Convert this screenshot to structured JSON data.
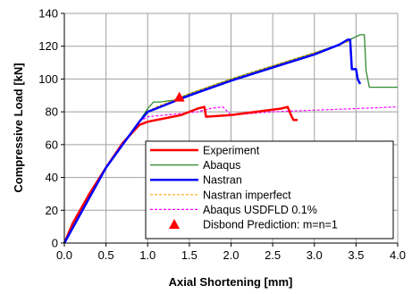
{
  "chart_data": {
    "type": "line",
    "xlabel": "Axial Shortening [mm]",
    "ylabel": "Compressive Load [kN]",
    "xlim": [
      0,
      4
    ],
    "ylim": [
      0,
      140
    ],
    "xticks": [
      "0.0",
      "0.5",
      "1.0",
      "1.5",
      "2.0",
      "2.5",
      "3.0",
      "3.5",
      "4.0"
    ],
    "yticks": [
      "0",
      "20",
      "40",
      "60",
      "80",
      "100",
      "120",
      "140"
    ],
    "grid": true,
    "legend_position": "bottom-right",
    "series": [
      {
        "name": "Experiment",
        "color": "#ff0000",
        "style": "solid",
        "x": [
          0.0,
          0.1,
          0.3,
          0.5,
          0.7,
          0.9,
          1.0,
          1.2,
          1.4,
          1.6,
          1.68,
          1.7,
          2.0,
          2.3,
          2.6,
          2.68,
          2.72,
          2.75,
          2.8
        ],
        "y": [
          0,
          12,
          30,
          46,
          61,
          72,
          74,
          76,
          78,
          82,
          83,
          77,
          78,
          80,
          82,
          83,
          78,
          75,
          75
        ]
      },
      {
        "name": "Abaqus",
        "color": "#2e8b2e",
        "style": "solid",
        "x": [
          0.0,
          0.5,
          0.9,
          1.0,
          1.07,
          1.15,
          1.3,
          1.5,
          2.0,
          2.5,
          3.0,
          3.3,
          3.55,
          3.6,
          3.62,
          3.66,
          4.0
        ],
        "y": [
          0,
          46,
          74,
          82,
          86,
          86,
          87,
          91,
          100,
          108,
          116,
          121,
          127,
          127,
          105,
          95,
          95
        ]
      },
      {
        "name": "Nastran",
        "color": "#0000ff",
        "style": "solid",
        "x": [
          0.0,
          0.5,
          0.9,
          1.0,
          1.1,
          1.3,
          1.5,
          2.0,
          2.5,
          3.0,
          3.3,
          3.4,
          3.43,
          3.45,
          3.5,
          3.52,
          3.55
        ],
        "y": [
          0,
          46,
          74,
          80,
          82,
          86,
          90,
          99,
          107,
          115,
          121,
          124,
          124,
          106,
          106,
          100,
          97
        ]
      },
      {
        "name": "Nastran imperfect",
        "color": "#ffa500",
        "style": "dashed",
        "x": [
          0.0,
          0.5,
          0.9,
          1.0,
          1.1,
          1.3,
          1.5,
          2.0,
          2.5,
          3.0,
          3.3,
          3.42
        ],
        "y": [
          0,
          46,
          74,
          80,
          83,
          87,
          91,
          100,
          108,
          116,
          121,
          123
        ]
      },
      {
        "name": "Abaqus USDFLD 0.1%",
        "color": "#ff00ff",
        "style": "dashed",
        "x": [
          0.0,
          0.5,
          0.9,
          1.0,
          1.2,
          1.4,
          1.6,
          1.75,
          1.9,
          2.0,
          2.5,
          3.0,
          3.5,
          4.0
        ],
        "y": [
          0,
          46,
          74,
          77,
          78,
          79,
          80,
          82,
          83,
          78,
          80,
          81,
          82,
          83
        ]
      }
    ],
    "markers": [
      {
        "name": "Disbond Prediction: m=n=1",
        "color": "#ff0000",
        "shape": "triangle",
        "x": 1.38,
        "y": 89
      }
    ]
  }
}
